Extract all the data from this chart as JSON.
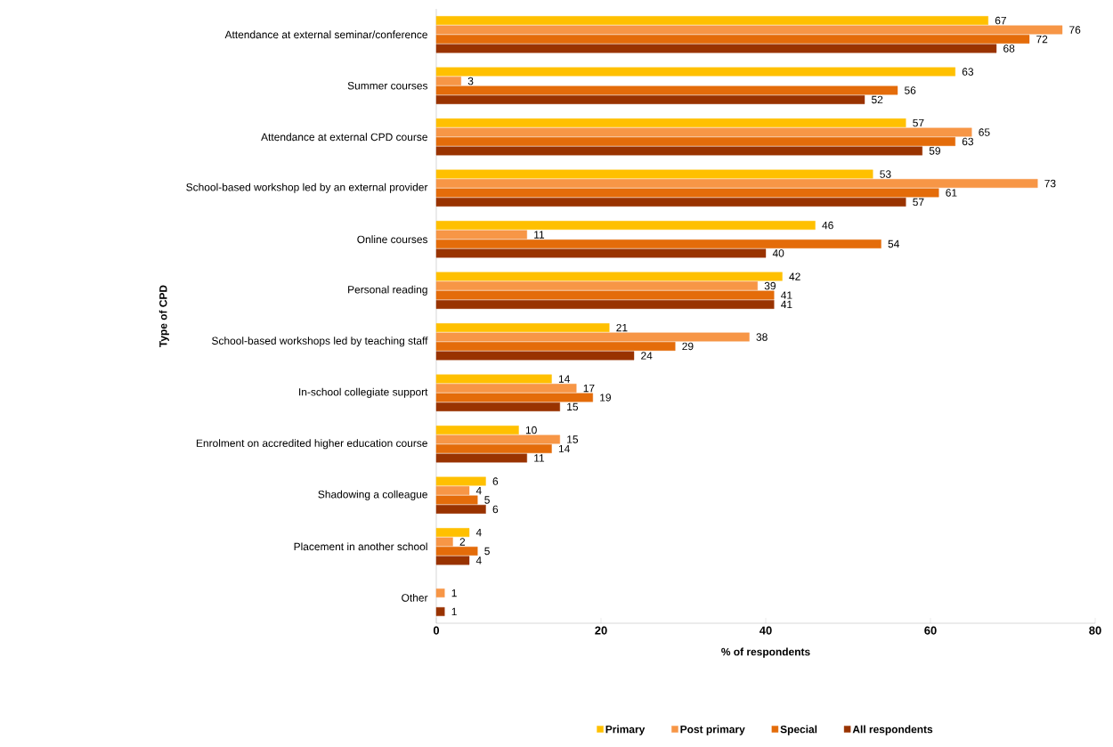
{
  "chart_data": {
    "type": "bar",
    "orientation": "horizontal",
    "xlabel": "% of respondents",
    "ylabel": "Type of CPD",
    "categories": [
      "Attendance at external seminar/conference",
      "Summer courses",
      "Attendance at external CPD course",
      "School-based workshop led by an external provider",
      "Online courses",
      "Personal reading",
      "School-based workshops led by teaching staff",
      "In-school collegiate support",
      "Enrolment on accredited higher education course",
      "Shadowing a colleague",
      "Placement in another school",
      "Other"
    ],
    "series": [
      {
        "name": "Primary",
        "color": "#ffc000",
        "values": [
          67,
          63,
          57,
          53,
          46,
          42,
          21,
          14,
          10,
          6,
          4,
          null
        ]
      },
      {
        "name": "Post primary",
        "color": "#f79646",
        "values": [
          76,
          3,
          65,
          73,
          11,
          39,
          38,
          17,
          15,
          4,
          2,
          1
        ]
      },
      {
        "name": "Special",
        "color": "#e46c0a",
        "values": [
          72,
          56,
          63,
          61,
          54,
          41,
          29,
          19,
          14,
          5,
          5,
          null
        ]
      },
      {
        "name": "All respondents",
        "color": "#993300",
        "values": [
          68,
          52,
          59,
          57,
          40,
          41,
          24,
          15,
          11,
          6,
          4,
          1
        ]
      }
    ],
    "xlim": [
      0,
      80
    ],
    "xticks": [
      0,
      20,
      40,
      60,
      80
    ],
    "data_labels": true,
    "legend": "bottom",
    "grid": false
  }
}
